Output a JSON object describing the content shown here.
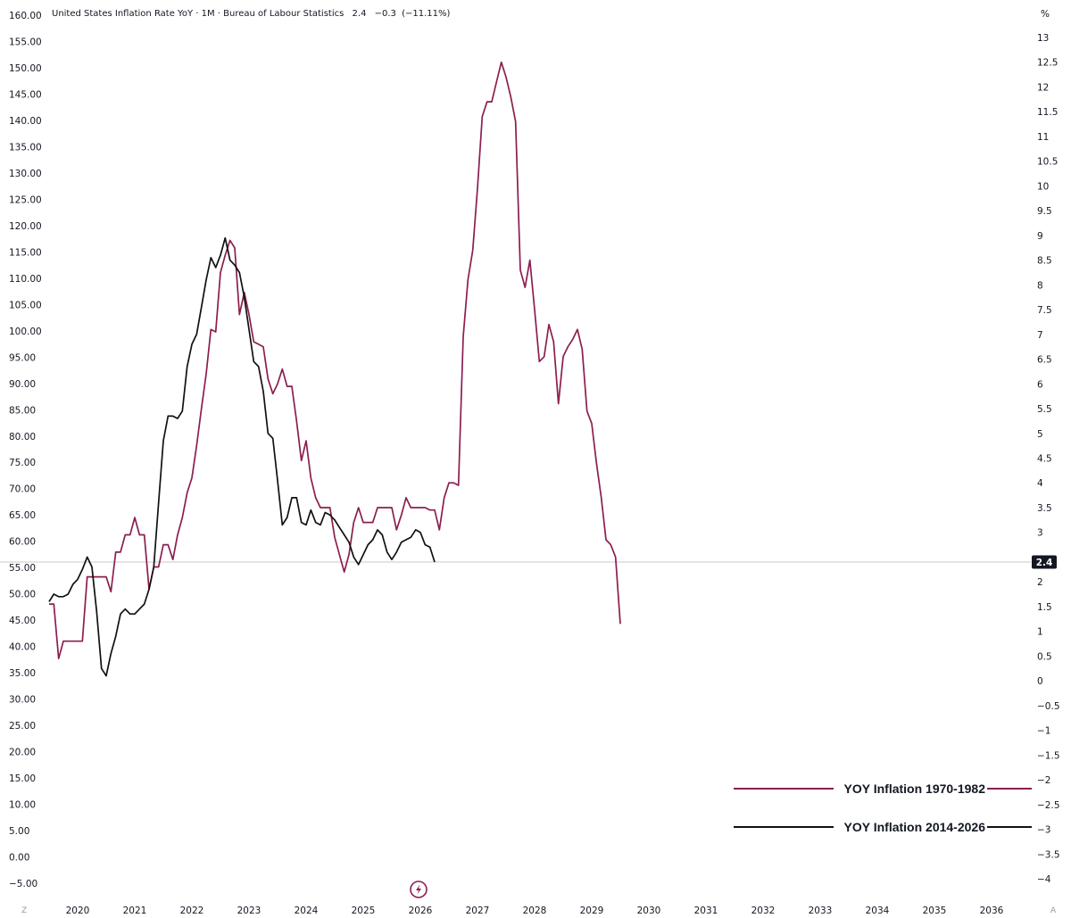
{
  "header": {
    "title": "United States Inflation Rate YoY · 1M · Bureau of Labour Statistics",
    "last_value": "2.4",
    "change": "−0.3",
    "change_pct": "(−11.11%)"
  },
  "corner_labels": {
    "left": "Z",
    "right": "A"
  },
  "current_value_badge": "2.4",
  "colors": {
    "series_1970": "#8b1e4f",
    "series_2014": "#111111",
    "current_line": "#c8c8c8"
  },
  "icons": {
    "bottom_marker": "lightning-icon"
  },
  "chart_data": {
    "type": "line",
    "x_axis": {
      "type": "date",
      "ticks": [
        "2020",
        "2021",
        "2022",
        "2023",
        "2024",
        "2025",
        "2026",
        "2027",
        "2028",
        "2029",
        "2030",
        "2031",
        "2032",
        "2033",
        "2034",
        "2035",
        "2036"
      ],
      "range": [
        "2019-07-01",
        "2036-12-31"
      ]
    },
    "left_axis": {
      "ticks": [
        "160.00",
        "155.00",
        "150.00",
        "145.00",
        "140.00",
        "135.00",
        "130.00",
        "125.00",
        "120.00",
        "115.00",
        "110.00",
        "105.00",
        "100.00",
        "95.00",
        "90.00",
        "85.00",
        "80.00",
        "75.00",
        "70.00",
        "65.00",
        "60.00",
        "55.00",
        "50.00",
        "45.00",
        "40.00",
        "35.00",
        "30.00",
        "25.00",
        "20.00",
        "15.00",
        "10.00",
        "5.00",
        "0.00",
        "−5.00"
      ],
      "range": [
        -5,
        160
      ]
    },
    "right_axis": {
      "unit": "%",
      "ticks": [
        "13",
        "12.5",
        "12",
        "11.5",
        "11",
        "10.5",
        "10",
        "9.5",
        "9",
        "8.5",
        "8",
        "7.5",
        "7",
        "6.5",
        "6",
        "5.5",
        "5",
        "4.5",
        "4",
        "3.5",
        "3",
        "2.5",
        "2",
        "1.5",
        "1",
        "0.5",
        "0",
        "−0.5",
        "−1",
        "−1.5",
        "−2",
        "−2.5",
        "−3",
        "−3.5",
        "−4"
      ],
      "range": [
        -4,
        13
      ]
    },
    "current_value": 2.4,
    "grid": false,
    "legend": {
      "placement": "bottom-right"
    },
    "series": [
      {
        "name": "YOY Inflation 1970-1982",
        "points": [
          [
            "2019-07",
            1.55
          ],
          [
            "2019-08",
            1.55
          ],
          [
            "2019-09",
            0.45
          ],
          [
            "2019-10",
            0.8
          ],
          [
            "2019-11",
            0.8
          ],
          [
            "2019-12",
            0.8
          ],
          [
            "2020-02",
            0.8
          ],
          [
            "2020-03",
            2.1
          ],
          [
            "2020-07",
            2.1
          ],
          [
            "2020-08",
            1.8
          ],
          [
            "2020-09",
            2.6
          ],
          [
            "2020-10",
            2.6
          ],
          [
            "2020-11",
            2.95
          ],
          [
            "2020-12",
            2.95
          ],
          [
            "2021-01",
            3.3
          ],
          [
            "2021-02",
            2.95
          ],
          [
            "2021-03",
            2.95
          ],
          [
            "2021-04",
            1.85
          ],
          [
            "2021-05",
            2.3
          ],
          [
            "2021-06",
            2.3
          ],
          [
            "2021-07",
            2.75
          ],
          [
            "2021-08",
            2.75
          ],
          [
            "2021-09",
            2.45
          ],
          [
            "2021-10",
            2.95
          ],
          [
            "2021-11",
            3.3
          ],
          [
            "2021-12",
            3.8
          ],
          [
            "2022-01",
            4.1
          ],
          [
            "2022-02",
            4.75
          ],
          [
            "2022-03",
            5.5
          ],
          [
            "2022-04",
            6.2
          ],
          [
            "2022-05",
            7.1
          ],
          [
            "2022-06",
            7.05
          ],
          [
            "2022-07",
            8.25
          ],
          [
            "2022-08",
            8.6
          ],
          [
            "2022-09",
            8.9
          ],
          [
            "2022-10",
            8.75
          ],
          [
            "2022-11",
            7.4
          ],
          [
            "2022-12",
            7.85
          ],
          [
            "2023-01",
            7.4
          ],
          [
            "2023-02",
            6.85
          ],
          [
            "2023-03",
            6.8
          ],
          [
            "2023-04",
            6.75
          ],
          [
            "2023-05",
            6.1
          ],
          [
            "2023-06",
            5.8
          ],
          [
            "2023-07",
            6.0
          ],
          [
            "2023-08",
            6.3
          ],
          [
            "2023-09",
            5.95
          ],
          [
            "2023-10",
            5.95
          ],
          [
            "2023-11",
            5.25
          ],
          [
            "2023-12",
            4.45
          ],
          [
            "2024-01",
            4.85
          ],
          [
            "2024-02",
            4.1
          ],
          [
            "2024-03",
            3.7
          ],
          [
            "2024-04",
            3.5
          ],
          [
            "2024-05",
            3.5
          ],
          [
            "2024-06",
            3.5
          ],
          [
            "2024-07",
            2.9
          ],
          [
            "2024-08",
            2.55
          ],
          [
            "2024-09",
            2.2
          ],
          [
            "2024-10",
            2.55
          ],
          [
            "2024-11",
            3.2
          ],
          [
            "2024-12",
            3.5
          ],
          [
            "2025-01",
            3.2
          ],
          [
            "2025-02",
            3.2
          ],
          [
            "2025-03",
            3.2
          ],
          [
            "2025-04",
            3.5
          ],
          [
            "2025-05",
            3.5
          ],
          [
            "2025-06",
            3.5
          ],
          [
            "2025-07",
            3.5
          ],
          [
            "2025-08",
            3.05
          ],
          [
            "2025-09",
            3.35
          ],
          [
            "2025-10",
            3.7
          ],
          [
            "2025-11",
            3.5
          ],
          [
            "2025-12",
            3.5
          ],
          [
            "2026-01",
            3.5
          ],
          [
            "2026-02",
            3.5
          ],
          [
            "2026-03",
            3.45
          ],
          [
            "2026-04",
            3.45
          ],
          [
            "2026-05",
            3.05
          ],
          [
            "2026-06",
            3.7
          ],
          [
            "2026-07",
            4.0
          ],
          [
            "2026-08",
            4.0
          ],
          [
            "2026-09",
            3.95
          ],
          [
            "2026-10",
            6.95
          ],
          [
            "2026-11",
            8.1
          ],
          [
            "2026-12",
            8.7
          ],
          [
            "2027-01",
            9.95
          ],
          [
            "2027-02",
            11.4
          ],
          [
            "2027-03",
            11.7
          ],
          [
            "2027-04",
            11.7
          ],
          [
            "2027-05",
            12.1
          ],
          [
            "2027-06",
            12.5
          ],
          [
            "2027-07",
            12.2
          ],
          [
            "2027-08",
            11.8
          ],
          [
            "2027-09",
            11.3
          ],
          [
            "2027-10",
            8.3
          ],
          [
            "2027-11",
            7.95
          ],
          [
            "2027-12",
            8.5
          ],
          [
            "2028-01",
            7.5
          ],
          [
            "2028-02",
            6.45
          ],
          [
            "2028-03",
            6.55
          ],
          [
            "2028-04",
            7.2
          ],
          [
            "2028-05",
            6.85
          ],
          [
            "2028-06",
            5.6
          ],
          [
            "2028-07",
            6.55
          ],
          [
            "2028-08",
            6.75
          ],
          [
            "2028-09",
            6.9
          ],
          [
            "2028-10",
            7.1
          ],
          [
            "2028-11",
            6.7
          ],
          [
            "2028-12",
            5.45
          ],
          [
            "2029-01",
            5.2
          ],
          [
            "2029-02",
            4.4
          ],
          [
            "2029-03",
            3.7
          ],
          [
            "2029-04",
            2.85
          ],
          [
            "2029-05",
            2.75
          ],
          [
            "2029-06",
            2.5
          ],
          [
            "2029-07",
            1.15
          ]
        ]
      },
      {
        "name": "YOY Inflation 2014-2026",
        "points": [
          [
            "2019-07",
            1.6
          ],
          [
            "2019-08",
            1.75
          ],
          [
            "2019-09",
            1.7
          ],
          [
            "2019-10",
            1.7
          ],
          [
            "2019-11",
            1.75
          ],
          [
            "2019-12",
            1.95
          ],
          [
            "2020-01",
            2.05
          ],
          [
            "2020-02",
            2.25
          ],
          [
            "2020-03",
            2.5
          ],
          [
            "2020-04",
            2.3
          ],
          [
            "2020-05",
            1.4
          ],
          [
            "2020-06",
            0.25
          ],
          [
            "2020-07",
            0.1
          ],
          [
            "2020-08",
            0.55
          ],
          [
            "2020-09",
            0.9
          ],
          [
            "2020-10",
            1.35
          ],
          [
            "2020-11",
            1.45
          ],
          [
            "2020-12",
            1.35
          ],
          [
            "2021-01",
            1.35
          ],
          [
            "2021-02",
            1.45
          ],
          [
            "2021-03",
            1.55
          ],
          [
            "2021-04",
            1.85
          ],
          [
            "2021-05",
            2.3
          ],
          [
            "2021-06",
            3.6
          ],
          [
            "2021-07",
            4.85
          ],
          [
            "2021-08",
            5.35
          ],
          [
            "2021-09",
            5.35
          ],
          [
            "2021-10",
            5.3
          ],
          [
            "2021-11",
            5.45
          ],
          [
            "2021-12",
            6.35
          ],
          [
            "2022-01",
            6.8
          ],
          [
            "2022-02",
            7.0
          ],
          [
            "2022-03",
            7.55
          ],
          [
            "2022-04",
            8.1
          ],
          [
            "2022-05",
            8.55
          ],
          [
            "2022-06",
            8.35
          ],
          [
            "2022-07",
            8.6
          ],
          [
            "2022-08",
            8.95
          ],
          [
            "2022-09",
            8.5
          ],
          [
            "2022-10",
            8.4
          ],
          [
            "2022-11",
            8.25
          ],
          [
            "2022-12",
            7.75
          ],
          [
            "2023-01",
            7.1
          ],
          [
            "2023-02",
            6.45
          ],
          [
            "2023-03",
            6.35
          ],
          [
            "2023-04",
            5.85
          ],
          [
            "2023-05",
            5.0
          ],
          [
            "2023-06",
            4.9
          ],
          [
            "2023-07",
            4.05
          ],
          [
            "2023-08",
            3.15
          ],
          [
            "2023-09",
            3.3
          ],
          [
            "2023-10",
            3.7
          ],
          [
            "2023-11",
            3.7
          ],
          [
            "2023-12",
            3.2
          ],
          [
            "2024-01",
            3.15
          ],
          [
            "2024-02",
            3.45
          ],
          [
            "2024-03",
            3.2
          ],
          [
            "2024-04",
            3.15
          ],
          [
            "2024-05",
            3.4
          ],
          [
            "2024-06",
            3.35
          ],
          [
            "2024-07",
            3.25
          ],
          [
            "2024-08",
            3.1
          ],
          [
            "2024-09",
            2.95
          ],
          [
            "2024-10",
            2.8
          ],
          [
            "2024-11",
            2.5
          ],
          [
            "2024-12",
            2.35
          ],
          [
            "2025-01",
            2.55
          ],
          [
            "2025-02",
            2.75
          ],
          [
            "2025-03",
            2.85
          ],
          [
            "2025-04",
            3.05
          ],
          [
            "2025-05",
            2.95
          ],
          [
            "2025-06",
            2.6
          ],
          [
            "2025-07",
            2.45
          ],
          [
            "2025-08",
            2.6
          ],
          [
            "2025-09",
            2.8
          ],
          [
            "2025-10",
            2.85
          ],
          [
            "2025-11",
            2.9
          ],
          [
            "2025-12",
            3.05
          ],
          [
            "2026-01",
            3.0
          ],
          [
            "2026-02",
            2.75
          ],
          [
            "2026-03",
            2.7
          ],
          [
            "2026-04",
            2.4
          ]
        ]
      }
    ]
  }
}
